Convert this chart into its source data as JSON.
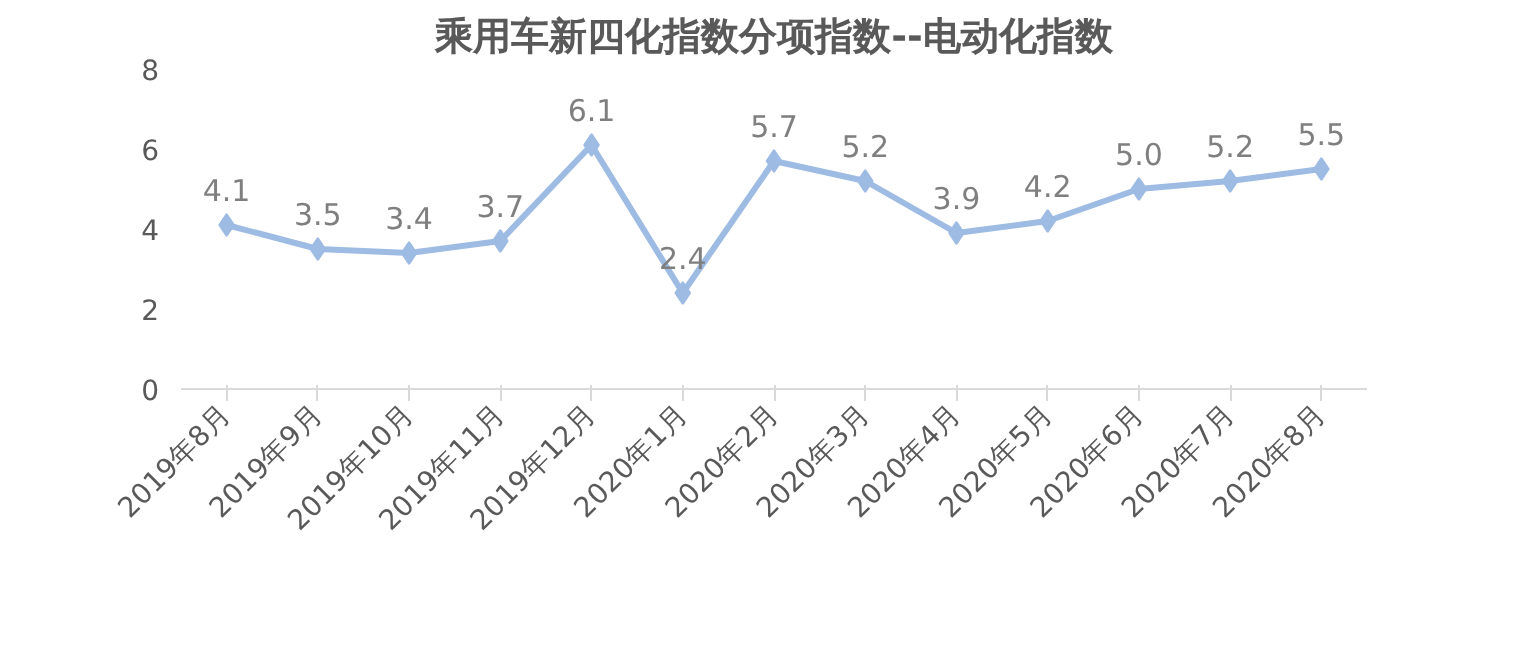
{
  "chart_data": {
    "type": "line",
    "title": "乘用车新四化指数分项指数--电动化指数",
    "categories": [
      "2019年8月",
      "2019年9月",
      "2019年10月",
      "2019年11月",
      "2019年12月",
      "2020年1月",
      "2020年2月",
      "2020年3月",
      "2020年4月",
      "2020年5月",
      "2020年6月",
      "2020年7月",
      "2020年8月"
    ],
    "series": [
      {
        "color": "#9dbbe3",
        "values": [
          4.1,
          3.5,
          3.4,
          3.7,
          6.1,
          2.4,
          5.7,
          5.2,
          3.9,
          4.2,
          5.0,
          5.2,
          5.5
        ],
        "value_labels": [
          "4.1",
          "3.5",
          "3.4",
          "3.7",
          "6.1",
          "2.4",
          "5.7",
          "5.2",
          "3.9",
          "4.2",
          "5.0",
          "5.2",
          "5.5"
        ]
      }
    ],
    "ylim": [
      0,
      8
    ],
    "yticks": [
      0,
      2,
      4,
      6,
      8
    ],
    "grid": false,
    "marker": "diamond",
    "line_style": "solid"
  }
}
